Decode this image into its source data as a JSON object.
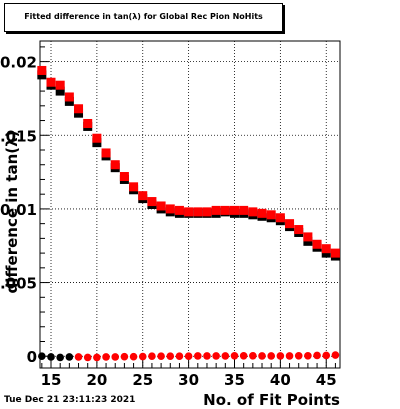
{
  "title": "Fitted difference in tan(λ) for Global Rec Pion NoHits",
  "timestamp": "Tue Dec 21 23:11:23 2021",
  "chart_data": {
    "type": "scatter",
    "title": "Fitted difference in tan(λ) for Global Rec Pion NoHits",
    "xlabel": "No. of Fit Points",
    "ylabel": "difference in tan(λ)",
    "xlim": [
      13.8,
      46.5
    ],
    "ylim": [
      -0.0008,
      0.0214
    ],
    "x_ticks": [
      "15",
      "20",
      "25",
      "30",
      "35",
      "40",
      "45"
    ],
    "y_ticks": [
      "0",
      "0.005",
      "0.01",
      "0.015",
      "0.02"
    ],
    "grid": true,
    "series": [
      {
        "color": "#000000",
        "marker": "square",
        "x": [
          14,
          15,
          16,
          17,
          18,
          19,
          20,
          21,
          22,
          23,
          24,
          25,
          26,
          27,
          28,
          29,
          30,
          31,
          32,
          33,
          34,
          35,
          36,
          37,
          38,
          39,
          40,
          41,
          42,
          43,
          44,
          45,
          46
        ],
        "y": [
          0.0191,
          0.0184,
          0.018,
          0.0173,
          0.0165,
          0.0156,
          0.0145,
          0.0136,
          0.0128,
          0.012,
          0.0113,
          0.0107,
          0.0103,
          0.01,
          0.0098,
          0.0097,
          0.0097,
          0.0097,
          0.0097,
          0.0097,
          0.0098,
          0.0097,
          0.0097,
          0.0096,
          0.0095,
          0.0094,
          0.0092,
          0.0088,
          0.0084,
          0.0078,
          0.0074,
          0.007,
          0.0068
        ]
      },
      {
        "color": "#ff0000",
        "marker": "square",
        "x": [
          14,
          15,
          16,
          17,
          18,
          19,
          20,
          21,
          22,
          23,
          24,
          25,
          26,
          27,
          28,
          29,
          30,
          31,
          32,
          33,
          34,
          35,
          36,
          37,
          38,
          39,
          40,
          41,
          42,
          43,
          44,
          45,
          46
        ],
        "y": [
          0.0194,
          0.0186,
          0.0184,
          0.0176,
          0.0168,
          0.0158,
          0.0148,
          0.0138,
          0.013,
          0.0122,
          0.0115,
          0.0109,
          0.0105,
          0.0102,
          0.01,
          0.0099,
          0.0098,
          0.0098,
          0.0098,
          0.0099,
          0.0099,
          0.0099,
          0.0099,
          0.0098,
          0.0097,
          0.0096,
          0.0094,
          0.009,
          0.0086,
          0.0081,
          0.0076,
          0.0073,
          0.007
        ]
      },
      {
        "color": "#000000",
        "marker": "circle",
        "x": [
          14,
          15,
          16,
          17
        ],
        "y": [
          0.0,
          -5e-05,
          -8e-05,
          -5e-05
        ]
      },
      {
        "color": "#ff0000",
        "marker": "circle",
        "x": [
          18,
          19,
          20,
          21,
          22,
          23,
          24,
          25,
          26,
          27,
          28,
          29,
          30,
          31,
          32,
          33,
          34,
          35,
          36,
          37,
          38,
          39,
          40,
          41,
          42,
          43,
          44,
          45,
          46
        ],
        "y": [
          -5e-05,
          -8e-05,
          -8e-05,
          -5e-05,
          -5e-05,
          -3e-05,
          -3e-05,
          -2e-05,
          0.0,
          0.0,
          0.0,
          0.0,
          0.0,
          2e-05,
          2e-05,
          2e-05,
          2e-05,
          3e-05,
          3e-05,
          3e-05,
          2e-05,
          2e-05,
          2e-05,
          2e-05,
          3e-05,
          3e-05,
          5e-05,
          5e-05,
          8e-05
        ]
      }
    ]
  }
}
